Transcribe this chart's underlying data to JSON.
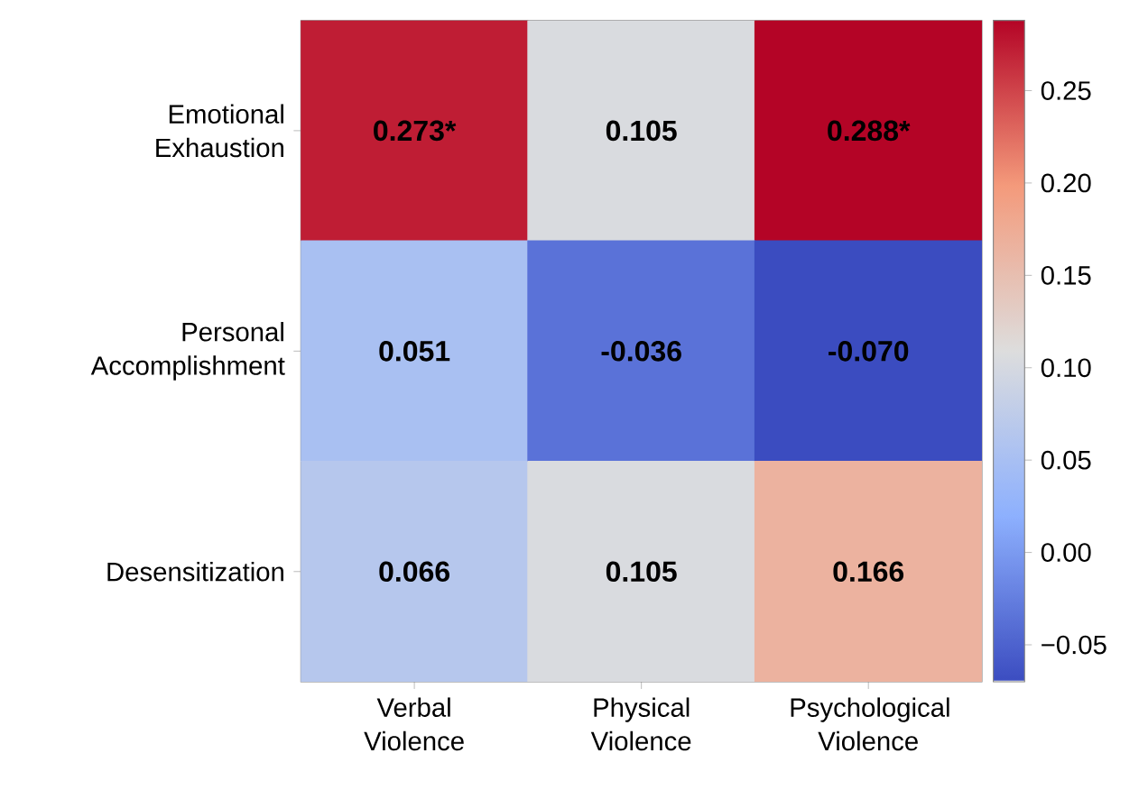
{
  "chart_data": {
    "type": "heatmap",
    "categories": [
      "Verbal Violence",
      "Physical Violence",
      "Psychological Violence"
    ],
    "y_categories": [
      "Emotional Exhaustion",
      "Personal Accomplishment",
      "Desensitization"
    ],
    "cells": [
      [
        0.273,
        0.105,
        0.288
      ],
      [
        0.051,
        -0.036,
        -0.07
      ],
      [
        0.066,
        0.105,
        0.166
      ]
    ],
    "cell_labels": [
      [
        "0.273*",
        "0.105",
        "0.288*"
      ],
      [
        "0.051",
        "-0.036",
        "-0.070"
      ],
      [
        "0.066",
        "0.105",
        "0.166"
      ]
    ],
    "clim": [
      -0.07,
      0.288
    ],
    "cticks": [
      {
        "value": -0.05,
        "label": "−0.05"
      },
      {
        "value": 0.0,
        "label": "0.00"
      },
      0.05,
      {
        "value": 0.1,
        "label": "0.10"
      },
      0.15,
      {
        "value": 0.2,
        "label": "0.20"
      },
      0.25
    ]
  }
}
